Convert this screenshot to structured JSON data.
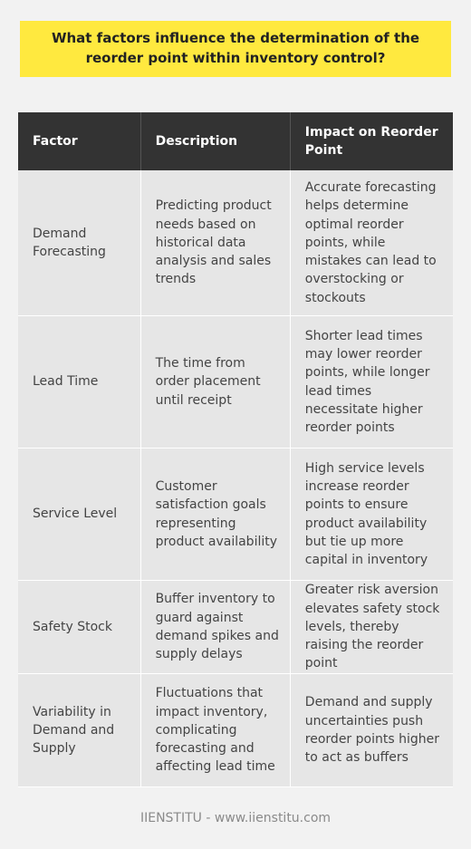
{
  "title": "What factors influence the determination of the reorder point within inventory control?",
  "table": {
    "headers": [
      "Factor",
      "Description",
      "Impact on Reorder Point"
    ],
    "rows": [
      {
        "factor": "Demand Forecasting",
        "description": "Predicting product needs based on historical data analysis and sales trends",
        "impact": "Accurate forecasting helps determine optimal reorder points, while mistakes can lead to overstocking or stockouts"
      },
      {
        "factor": "Lead Time",
        "description": "The time from order placement until receipt",
        "impact": "Shorter lead times may lower reorder points, while longer lead times necessitate higher reorder points"
      },
      {
        "factor": "Service Level",
        "description": "Customer satisfaction goals representing product availability",
        "impact": "High service levels increase reorder points to ensure product availability but tie up more capital in inventory"
      },
      {
        "factor": "Safety Stock",
        "description": "Buffer inventory to guard against demand spikes and supply delays",
        "impact": "Greater risk aversion elevates safety stock levels, thereby raising the reorder point"
      },
      {
        "factor": "Variability in Demand and Supply",
        "description": "Fluctuations that impact inventory, complicating forecasting and affecting lead time",
        "impact": "Demand and supply uncertainties push reorder points higher to act as buffers"
      }
    ]
  },
  "footer": "IIENSTITU - www.iienstitu.com",
  "colors": {
    "title_bg": "#ffe93f",
    "header_bg": "#333333",
    "cell_bg": "#e6e6e6",
    "page_bg": "#f2f2f2"
  }
}
